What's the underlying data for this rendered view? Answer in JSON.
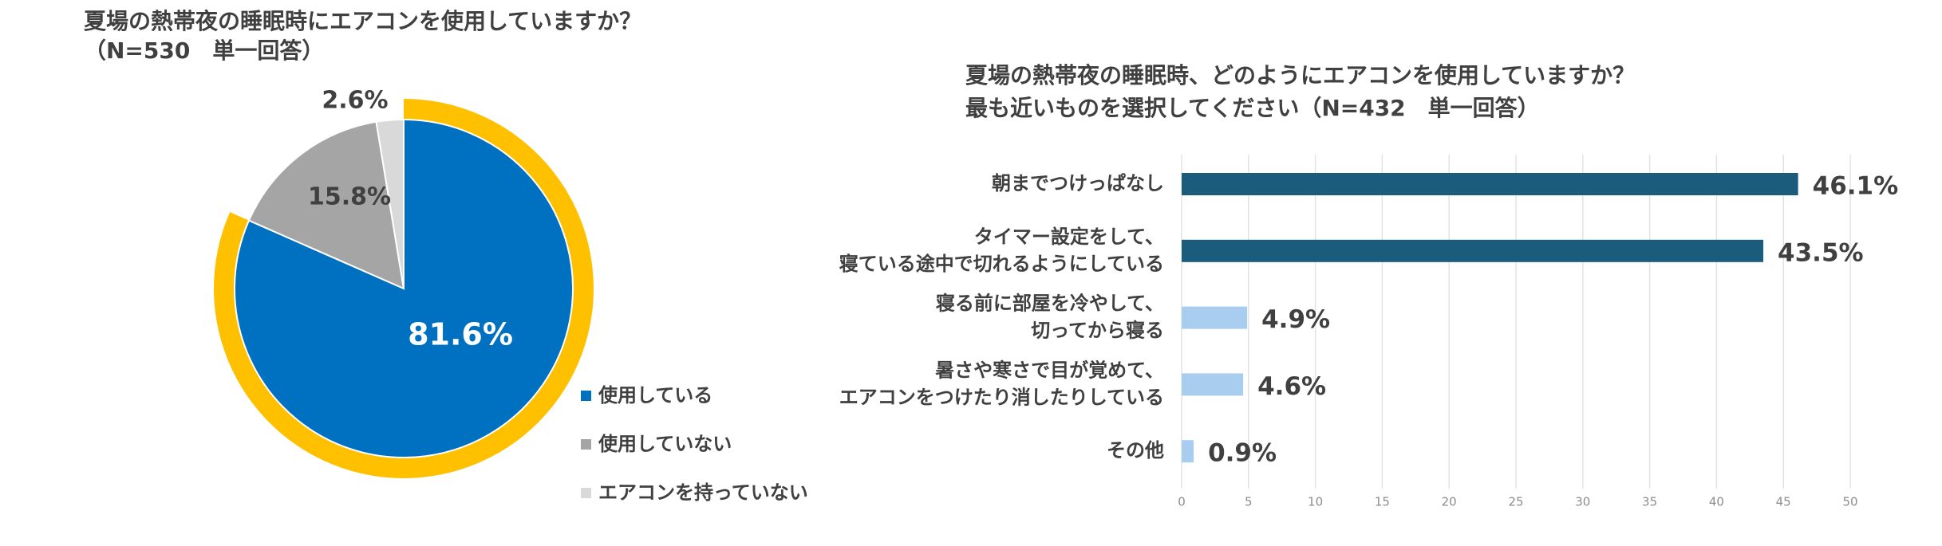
{
  "chart_data": [
    {
      "type": "pie",
      "title": [
        "夏場の熱帯夜の睡眠時にエアコンを使用していますか？",
        "（N=530　単一回答）"
      ],
      "series": [
        {
          "name": "使用している",
          "color": "#0070c0",
          "values": [
            81.6
          ],
          "value_labels": [
            "81.6%"
          ]
        },
        {
          "name": "使用していない",
          "color": "#a5a5a5",
          "values": [
            15.8
          ],
          "value_labels": [
            "15.8%"
          ]
        },
        {
          "name": "エアコンを持っていない",
          "color": "#d9d9d9",
          "values": [
            2.6
          ],
          "value_labels": [
            "2.6%"
          ]
        }
      ],
      "highlight_color": "#ffc000"
    },
    {
      "type": "hbar",
      "title": [
        "夏場の熱帯夜の睡眠時、どのようにエアコンを使用していますか？",
        "最も近いものを選択してください（N=432　単一回答）"
      ],
      "categories": [
        [
          "朝までつけっぱなし"
        ],
        [
          "タイマー設定をして、",
          "寝ている途中で切れるようにしている"
        ],
        [
          "寝る前に部屋を冷やして、",
          "切ってから寝る"
        ],
        [
          "暑さや寒さで目が覚めて、",
          "エアコンをつけたり消したりしている"
        ],
        [
          "その他"
        ]
      ],
      "values": [
        46.1,
        43.5,
        4.9,
        4.6,
        0.9
      ],
      "value_labels": [
        "46.1%",
        "43.5%",
        "4.9%",
        "4.6%",
        "0.9%"
      ],
      "colors": [
        "#1b5b7c",
        "#1b5b7c",
        "#a9cdef",
        "#a9cdef",
        "#a9cdef"
      ],
      "xlim": [
        0,
        50
      ],
      "xticks": [
        0,
        5,
        10,
        15,
        20,
        25,
        30,
        35,
        40,
        45,
        50
      ],
      "grid": true
    }
  ]
}
